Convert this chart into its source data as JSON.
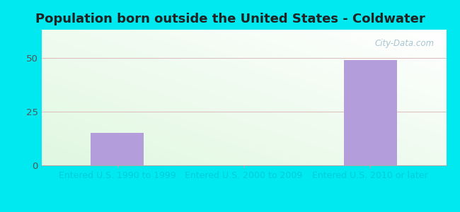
{
  "title": "Population born outside the United States - Coldwater",
  "categories": [
    "Entered U.S. 1990 to 1999",
    "Entered U.S. 2000 to 2009",
    "Entered U.S. 2010 or later"
  ],
  "values": [
    15,
    0,
    49
  ],
  "bar_color": "#b39ddb",
  "yticks": [
    0,
    25,
    50
  ],
  "ylim": [
    0,
    63
  ],
  "outer_bg": "#00e8f0",
  "grid_color": "#ddbbbb",
  "title_fontsize": 13,
  "tick_fontsize": 9.5,
  "xlabel_fontsize": 9,
  "tick_color": "#555555",
  "xlabel_color": "#00ccdd",
  "watermark": "City-Data.com",
  "title_color": "#222222",
  "bar_width": 0.42
}
